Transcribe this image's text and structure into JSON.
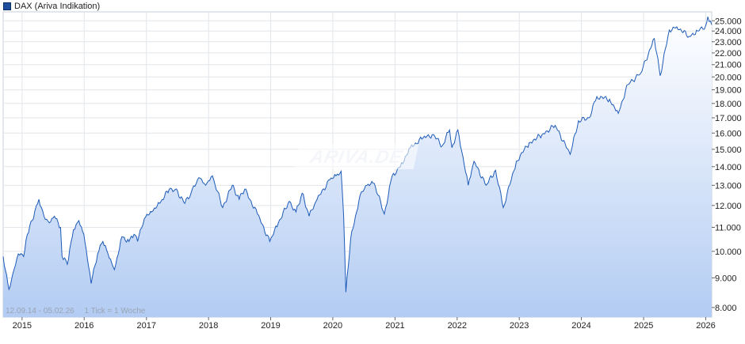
{
  "legend": {
    "label": "DAX (Ariva Indikation)",
    "color": "#1e4e9c"
  },
  "info": {
    "range": "12.09.14 - 05.02.26",
    "tick": "1 Tick = 1 Woche"
  },
  "watermark": "ARIVA.DE",
  "chart_data": {
    "type": "area",
    "title": "",
    "xlabel": "",
    "ylabel": "",
    "y_scale": "log",
    "xlim": [
      "2014-09-12",
      "2026-02-05"
    ],
    "ylim": [
      7700,
      25900
    ],
    "grid": true,
    "legend_position": "top-left",
    "x_ticks": [
      "2015",
      "2016",
      "2017",
      "2018",
      "2019",
      "2020",
      "2021",
      "2022",
      "2023",
      "2024",
      "2025",
      "2026"
    ],
    "y_ticks": [
      8000,
      9000,
      10000,
      11000,
      12000,
      13000,
      14000,
      15000,
      16000,
      17000,
      18000,
      19000,
      20000,
      21000,
      22000,
      23000,
      24000,
      25000
    ],
    "y_tick_labels": [
      "8.000",
      "9.000",
      "10.000",
      "11.000",
      "12.000",
      "13.000",
      "14.000",
      "15.000",
      "16.000",
      "17.000",
      "18.000",
      "19.000",
      "20.000",
      "21.000",
      "22.000",
      "23.000",
      "24.000",
      "25.000"
    ],
    "series": [
      {
        "color": "#1e5bb8",
        "points": [
          [
            "2014-09-12",
            9800
          ],
          [
            "2014-10-16",
            8600
          ],
          [
            "2014-11-15",
            9300
          ],
          [
            "2014-12-10",
            9900
          ],
          [
            "2015-01-10",
            9800
          ],
          [
            "2015-02-01",
            10700
          ],
          [
            "2015-03-01",
            11300
          ],
          [
            "2015-04-10",
            12300
          ],
          [
            "2015-05-10",
            11500
          ],
          [
            "2015-06-10",
            11200
          ],
          [
            "2015-07-10",
            11500
          ],
          [
            "2015-08-15",
            11000
          ],
          [
            "2015-08-24",
            9800
          ],
          [
            "2015-09-24",
            9500
          ],
          [
            "2015-10-30",
            10900
          ],
          [
            "2015-12-01",
            11300
          ],
          [
            "2015-12-30",
            10700
          ],
          [
            "2016-01-20",
            9700
          ],
          [
            "2016-02-11",
            8800
          ],
          [
            "2016-03-20",
            9900
          ],
          [
            "2016-04-20",
            10400
          ],
          [
            "2016-05-20",
            9900
          ],
          [
            "2016-06-27",
            9300
          ],
          [
            "2016-08-10",
            10600
          ],
          [
            "2016-09-20",
            10400
          ],
          [
            "2016-10-20",
            10700
          ],
          [
            "2016-11-10",
            10400
          ],
          [
            "2016-12-20",
            11400
          ],
          [
            "2017-02-01",
            11700
          ],
          [
            "2017-03-20",
            12100
          ],
          [
            "2017-05-15",
            12800
          ],
          [
            "2017-06-20",
            12800
          ],
          [
            "2017-08-15",
            12100
          ],
          [
            "2017-09-20",
            12600
          ],
          [
            "2017-11-05",
            13400
          ],
          [
            "2017-12-15",
            13000
          ],
          [
            "2018-01-23",
            13500
          ],
          [
            "2018-03-25",
            11900
          ],
          [
            "2018-05-20",
            13000
          ],
          [
            "2018-06-30",
            12300
          ],
          [
            "2018-08-01",
            12800
          ],
          [
            "2018-10-15",
            11600
          ],
          [
            "2018-12-27",
            10400
          ],
          [
            "2019-02-15",
            11200
          ],
          [
            "2019-04-20",
            12200
          ],
          [
            "2019-05-30",
            11700
          ],
          [
            "2019-07-05",
            12600
          ],
          [
            "2019-08-15",
            11500
          ],
          [
            "2019-10-01",
            12300
          ],
          [
            "2019-12-15",
            13300
          ],
          [
            "2020-01-20",
            13500
          ],
          [
            "2020-02-19",
            13750
          ],
          [
            "2020-03-05",
            11500
          ],
          [
            "2020-03-18",
            8500
          ],
          [
            "2020-04-15",
            10500
          ],
          [
            "2020-06-10",
            12500
          ],
          [
            "2020-07-20",
            13000
          ],
          [
            "2020-09-01",
            13100
          ],
          [
            "2020-10-30",
            11600
          ],
          [
            "2020-12-15",
            13500
          ],
          [
            "2021-02-01",
            14000
          ],
          [
            "2021-04-01",
            15100
          ],
          [
            "2021-06-15",
            15700
          ],
          [
            "2021-08-15",
            15900
          ],
          [
            "2021-10-05",
            15200
          ],
          [
            "2021-11-17",
            16200
          ],
          [
            "2021-12-01",
            15100
          ],
          [
            "2022-01-05",
            16200
          ],
          [
            "2022-03-07",
            13000
          ],
          [
            "2022-04-10",
            14300
          ],
          [
            "2022-06-20",
            13000
          ],
          [
            "2022-08-15",
            13800
          ],
          [
            "2022-09-29",
            11900
          ],
          [
            "2022-12-15",
            14300
          ],
          [
            "2023-03-01",
            15400
          ],
          [
            "2023-05-15",
            15900
          ],
          [
            "2023-07-31",
            16500
          ],
          [
            "2023-10-27",
            14700
          ],
          [
            "2023-12-15",
            16800
          ],
          [
            "2024-02-15",
            17000
          ],
          [
            "2024-04-01",
            18500
          ],
          [
            "2024-06-15",
            18300
          ],
          [
            "2024-08-05",
            17300
          ],
          [
            "2024-09-30",
            19400
          ],
          [
            "2024-12-15",
            20300
          ],
          [
            "2025-03-05",
            23300
          ],
          [
            "2025-04-08",
            20100
          ],
          [
            "2025-06-01",
            24100
          ],
          [
            "2025-07-15",
            24400
          ],
          [
            "2025-09-25",
            23500
          ],
          [
            "2025-11-15",
            24000
          ],
          [
            "2025-12-31",
            24500
          ],
          [
            "2026-01-13",
            25400
          ],
          [
            "2026-02-05",
            24600
          ]
        ]
      }
    ]
  }
}
